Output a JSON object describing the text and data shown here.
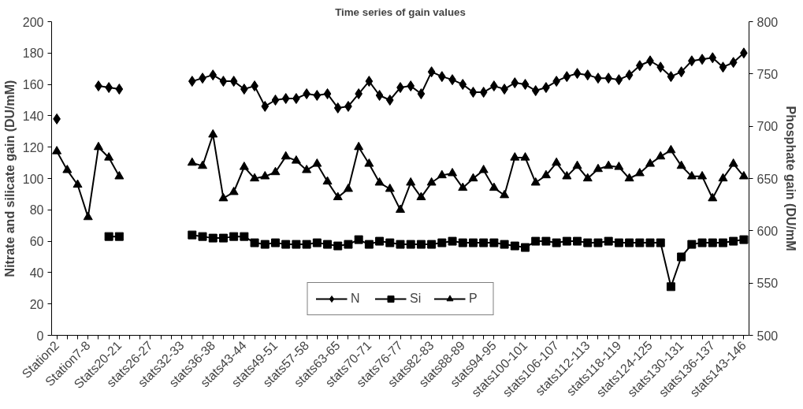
{
  "chart_data": {
    "type": "line",
    "title": "Time series of gain values",
    "ylabel": "Nitrate and silicate gain (DU/mM)",
    "y2label": "Phosphate gain (DU/mM",
    "categories": [
      "Station2",
      null,
      null,
      "Station7-8",
      null,
      null,
      "Stats20-21",
      null,
      null,
      "stats26-27",
      null,
      null,
      "stats32-33",
      null,
      null,
      "stats36-38",
      null,
      null,
      "stats43-44",
      null,
      null,
      "stats49-51",
      null,
      null,
      "stats57-58",
      null,
      null,
      "stats63-65",
      null,
      null,
      "stats70-71",
      null,
      null,
      "stats76-77",
      null,
      null,
      "stats82-83",
      null,
      null,
      "stats88-89",
      null,
      null,
      "stats94-95",
      null,
      null,
      "stats100-101",
      null,
      null,
      "stats106-107",
      null,
      null,
      "stats112-113",
      null,
      null,
      "stats118-119",
      null,
      null,
      "stats124-125",
      null,
      null,
      "stats130-131",
      null,
      null,
      "stats136-137",
      null,
      null,
      "stats143-146"
    ],
    "series": [
      {
        "name": "N",
        "color": "#000000",
        "marker": "diamond",
        "values": [
          138,
          null,
          null,
          null,
          159,
          158,
          157,
          null,
          null,
          null,
          null,
          null,
          null,
          162,
          164,
          166,
          162,
          162,
          157,
          159,
          146,
          150,
          151,
          151,
          154,
          153,
          154,
          145,
          146,
          154,
          162,
          153,
          150,
          158,
          159,
          154,
          168,
          165,
          163,
          160,
          155,
          155,
          159,
          157,
          161,
          160,
          156,
          158,
          162,
          165,
          167,
          166,
          164,
          164,
          163,
          166,
          172,
          175,
          171,
          165,
          168,
          175,
          176,
          177,
          171,
          174,
          180
        ]
      },
      {
        "name": "Si",
        "color": "#000000",
        "marker": "square",
        "values": [
          null,
          null,
          null,
          null,
          null,
          63,
          63,
          null,
          null,
          null,
          null,
          null,
          null,
          64,
          63,
          62,
          62,
          63,
          63,
          59,
          58,
          59,
          58,
          58,
          58,
          59,
          58,
          57,
          58,
          61,
          58,
          60,
          59,
          58,
          58,
          58,
          58,
          59,
          60,
          59,
          59,
          59,
          59,
          58,
          57,
          56,
          60,
          60,
          59,
          60,
          60,
          59,
          59,
          60,
          59,
          59,
          59,
          59,
          59,
          31,
          50,
          58,
          59,
          59,
          59,
          60,
          61
        ]
      },
      {
        "name": "P",
        "color": "#000000",
        "marker": "triangle",
        "axis": "y2",
        "values": [
          676,
          658,
          644,
          613,
          680,
          670,
          652,
          null,
          null,
          null,
          null,
          null,
          null,
          665,
          662,
          692,
          631,
          637,
          661,
          650,
          652,
          656,
          671,
          667,
          658,
          664,
          647,
          632,
          640,
          680,
          664,
          646,
          640,
          620,
          646,
          632,
          646,
          653,
          655,
          641,
          650,
          658,
          641,
          634,
          670,
          670,
          646,
          653,
          665,
          652,
          662,
          650,
          659,
          662,
          661,
          650,
          655,
          664,
          671,
          677,
          662,
          652,
          652,
          631,
          650,
          664,
          652
        ]
      }
    ],
    "ylim": [
      0,
      200
    ],
    "yticks": [
      0,
      20,
      40,
      60,
      80,
      100,
      120,
      140,
      160,
      180,
      200
    ],
    "y2lim": [
      500,
      800
    ],
    "y2ticks": [
      500,
      550,
      600,
      650,
      700,
      750,
      800
    ],
    "grid": false,
    "legend": "bottom",
    "line_style": "solid"
  }
}
